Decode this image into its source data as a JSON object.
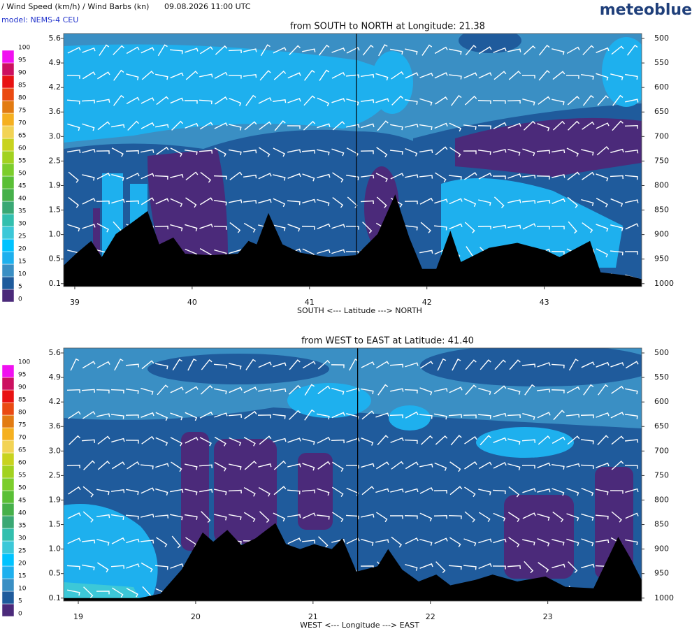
{
  "header": {
    "legend_label": "/ Wind Speed (km/h) / Wind Barbs (kn)",
    "datetime": "09.08.2026  11:00 UTC",
    "model": "model: NEMS-4 CEU",
    "brand": "meteoblue"
  },
  "chart_data": [
    {
      "type": "area",
      "title": "from SOUTH to NORTH at Longitude:  21.38",
      "x_label": "SOUTH <---   Latitude   ---> NORTH",
      "xlim": [
        38.905,
        43.83
      ],
      "xticks": [
        39,
        40,
        41,
        42,
        43
      ],
      "yticks": [
        {
          "value": 5.6,
          "label": "5.6"
        },
        {
          "value": 4.9,
          "label": "4.9"
        },
        {
          "value": 4.2,
          "label": "4.2"
        },
        {
          "value": 3.6,
          "label": "3.6"
        },
        {
          "value": 3,
          "label": "3.0"
        },
        {
          "value": 2.5,
          "label": "2.5"
        },
        {
          "value": 1.9,
          "label": "1.9"
        },
        {
          "value": 1.5,
          "label": "1.5"
        },
        {
          "value": 1,
          "label": "1.0"
        },
        {
          "value": 0.5,
          "label": "0.5"
        },
        {
          "value": 0.1,
          "label": "0.1"
        }
      ],
      "y2lim": [
        1006,
        490
      ],
      "y2ticks": [
        500,
        550,
        600,
        650,
        700,
        750,
        800,
        850,
        900,
        950,
        1000
      ],
      "marker_x": 41.4,
      "terrain": {
        "color": "#000000",
        "axis": "y2",
        "x": [
          38.905,
          39.02,
          39.14,
          39.23,
          39.35,
          39.49,
          39.62,
          39.72,
          39.84,
          39.94,
          40.15,
          40.39,
          40.48,
          40.55,
          40.65,
          40.77,
          40.92,
          41.16,
          41.4,
          41.58,
          41.73,
          41.85,
          41.96,
          42.08,
          42.2,
          42.29,
          42.53,
          42.77,
          43.01,
          43.13,
          43.39,
          43.48,
          43.72,
          43.83
        ],
        "values": [
          963,
          937,
          913,
          946,
          899,
          875,
          852,
          920,
          906,
          939,
          942,
          939,
          913,
          920,
          856,
          920,
          937,
          946,
          942,
          899,
          818,
          906,
          970,
          970,
          892,
          956,
          927,
          917,
          932,
          946,
          913,
          977,
          984,
          991
        ]
      },
      "colorbar": {
        "levels": [
          0,
          5,
          10,
          15,
          20,
          25,
          30,
          35,
          40,
          45,
          50,
          55,
          60,
          65,
          70,
          75,
          80,
          85,
          90,
          95,
          100
        ],
        "colors": [
          "#4b2a7a",
          "#1f5b9c",
          "#3a8fc4",
          "#1eb0ee",
          "#00c3ff",
          "#3cc8d8",
          "#33bfae",
          "#3aa874",
          "#46b04a",
          "#5abf36",
          "#7ccd2c",
          "#a2d21f",
          "#c8d31f",
          "#f2d355",
          "#f5b020",
          "#e27b12",
          "#ea4a12",
          "#e81212",
          "#cc1060",
          "#f010f0"
        ]
      }
    },
    {
      "type": "area",
      "title": "from WEST to EAST at Latitude:  41.40",
      "x_label": "WEST <---   Longitude   ---> EAST",
      "xlim": [
        18.875,
        23.8
      ],
      "xticks": [
        19,
        20,
        21,
        22,
        23
      ],
      "yticks": [
        {
          "value": 5.6,
          "label": "5.6"
        },
        {
          "value": 4.9,
          "label": "4.9"
        },
        {
          "value": 4.2,
          "label": "4.2"
        },
        {
          "value": 3.6,
          "label": "3.6"
        },
        {
          "value": 3,
          "label": "3.0"
        },
        {
          "value": 2.5,
          "label": "2.5"
        },
        {
          "value": 1.9,
          "label": "1.9"
        },
        {
          "value": 1.5,
          "label": "1.5"
        },
        {
          "value": 1,
          "label": "1.0"
        },
        {
          "value": 0.5,
          "label": "0.5"
        },
        {
          "value": 0.1,
          "label": "0.1"
        }
      ],
      "y2lim": [
        1006,
        490
      ],
      "y2ticks": [
        500,
        550,
        600,
        650,
        700,
        750,
        800,
        850,
        900,
        950,
        1000
      ],
      "marker_x": 21.38,
      "terrain": {
        "color": "#000000",
        "axis": "y2",
        "x": [
          18.875,
          19.52,
          19.7,
          19.88,
          20.06,
          20.15,
          20.27,
          20.39,
          20.51,
          20.68,
          20.77,
          20.89,
          21.01,
          21.16,
          21.25,
          21.37,
          21.55,
          21.64,
          21.76,
          21.9,
          22.05,
          22.17,
          22.38,
          22.53,
          22.74,
          22.98,
          23.15,
          23.39,
          23.6,
          23.71,
          23.8
        ],
        "values": [
          1000,
          1000,
          991,
          942,
          866,
          885,
          861,
          892,
          878,
          847,
          890,
          900,
          890,
          900,
          878,
          946,
          935,
          900,
          942,
          966,
          952,
          974,
          963,
          952,
          966,
          956,
          977,
          980,
          875,
          921,
          963
        ]
      },
      "colorbar": {
        "levels": [
          0,
          5,
          10,
          15,
          20,
          25,
          30,
          35,
          40,
          45,
          50,
          55,
          60,
          65,
          70,
          75,
          80,
          85,
          90,
          95,
          100
        ],
        "colors": [
          "#4b2a7a",
          "#1f5b9c",
          "#3a8fc4",
          "#1eb0ee",
          "#00c3ff",
          "#3cc8d8",
          "#33bfae",
          "#3aa874",
          "#46b04a",
          "#5abf36",
          "#7ccd2c",
          "#a2d21f",
          "#c8d31f",
          "#f2d355",
          "#f5b020",
          "#e27b12",
          "#ea4a12",
          "#e81212",
          "#cc1060",
          "#f010f0"
        ]
      }
    }
  ]
}
